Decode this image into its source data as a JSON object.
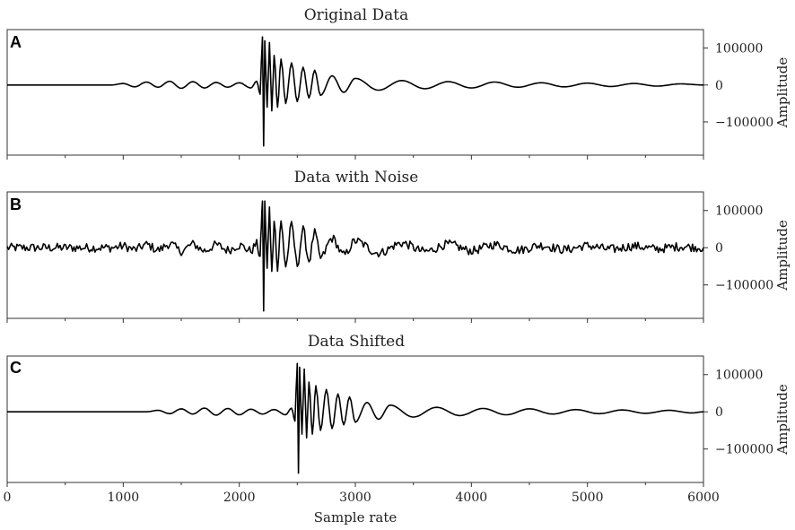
{
  "chart_data": [
    {
      "type": "line",
      "panel_letter": "A",
      "title": "Original Data",
      "ylabel": "Amplitude",
      "yticks": [
        100000,
        0,
        -100000
      ],
      "ytick_labels": [
        "100000",
        "0",
        "−100000"
      ],
      "ylim": [
        -190000,
        150000
      ],
      "xlim": [
        0,
        6000
      ],
      "x_tick_labels_visible": false,
      "series": [
        {
          "x": [
            0,
            900,
            1000,
            1100,
            1200,
            1300,
            1400,
            1500,
            1600,
            1700,
            1800,
            1900,
            2000,
            2100,
            2150,
            2180,
            2190,
            2200,
            2210,
            2220,
            2240,
            2260,
            2280,
            2300,
            2330,
            2360,
            2400,
            2450,
            2500,
            2550,
            2600,
            2650,
            2700,
            2800,
            2900,
            3000,
            3200,
            3400,
            3600,
            3800,
            4000,
            4200,
            4400,
            4600,
            4800,
            5000,
            5200,
            5400,
            5600,
            5800,
            6000
          ],
          "y": [
            0,
            0,
            4000,
            -5000,
            8000,
            -6000,
            10000,
            -9000,
            9000,
            -8000,
            7000,
            -6000,
            6000,
            -8000,
            10000,
            -25000,
            60000,
            130000,
            -165000,
            120000,
            -60000,
            115000,
            -70000,
            80000,
            -60000,
            70000,
            -50000,
            60000,
            -45000,
            48000,
            -35000,
            40000,
            -28000,
            25000,
            -20000,
            18000,
            -14000,
            12000,
            -10000,
            9000,
            -8000,
            8000,
            -6000,
            6000,
            -5000,
            5000,
            -4000,
            4000,
            -3000,
            3000,
            0
          ]
        }
      ]
    },
    {
      "type": "line",
      "panel_letter": "B",
      "title": "Data with Noise",
      "ylabel": "Amplitude",
      "yticks": [
        100000,
        0,
        -100000
      ],
      "ytick_labels": [
        "100000",
        "0",
        "−100000"
      ],
      "ylim": [
        -190000,
        150000
      ],
      "xlim": [
        0,
        6000
      ],
      "x_tick_labels_visible": false,
      "noise_level": 12000,
      "series": [
        {
          "x": [
            0,
            900,
            1000,
            1100,
            1200,
            1300,
            1400,
            1500,
            1600,
            1700,
            1800,
            1900,
            2000,
            2100,
            2150,
            2180,
            2190,
            2200,
            2210,
            2220,
            2240,
            2260,
            2280,
            2300,
            2330,
            2360,
            2400,
            2450,
            2500,
            2550,
            2600,
            2650,
            2700,
            2800,
            2900,
            3000,
            3200,
            3400,
            3600,
            3800,
            4000,
            4200,
            4400,
            4600,
            4800,
            5000,
            5200,
            5400,
            5600,
            5800,
            6000
          ],
          "y": [
            0,
            0,
            4000,
            -5000,
            8000,
            -6000,
            10000,
            -9000,
            9000,
            -8000,
            7000,
            -6000,
            6000,
            -8000,
            10000,
            -25000,
            60000,
            130000,
            -165000,
            120000,
            -60000,
            115000,
            -70000,
            80000,
            -60000,
            70000,
            -50000,
            60000,
            -45000,
            48000,
            -35000,
            40000,
            -28000,
            25000,
            -20000,
            18000,
            -14000,
            12000,
            -10000,
            9000,
            -8000,
            8000,
            -6000,
            6000,
            -5000,
            5000,
            -4000,
            4000,
            -3000,
            3000,
            0
          ]
        }
      ]
    },
    {
      "type": "line",
      "panel_letter": "C",
      "title": "Data Shifted",
      "ylabel": "Amplitude",
      "yticks": [
        100000,
        0,
        -100000
      ],
      "ytick_labels": [
        "100000",
        "0",
        "−100000"
      ],
      "ylim": [
        -190000,
        150000
      ],
      "xlim": [
        0,
        6000
      ],
      "x_tick_labels_visible": true,
      "xticks": [
        0,
        1000,
        2000,
        3000,
        4000,
        5000,
        6000
      ],
      "xtick_labels": [
        "0",
        "1000",
        "2000",
        "3000",
        "4000",
        "5000",
        "6000"
      ],
      "xlabel": "Sample rate",
      "series": [
        {
          "x": [
            0,
            1200,
            1300,
            1400,
            1500,
            1600,
            1700,
            1800,
            1900,
            2000,
            2100,
            2200,
            2300,
            2400,
            2450,
            2480,
            2490,
            2500,
            2510,
            2520,
            2540,
            2560,
            2580,
            2600,
            2630,
            2660,
            2700,
            2750,
            2800,
            2850,
            2900,
            2950,
            3000,
            3100,
            3200,
            3300,
            3500,
            3700,
            3900,
            4100,
            4300,
            4500,
            4700,
            4900,
            5100,
            5300,
            5500,
            5700,
            5900,
            6000
          ],
          "y": [
            0,
            0,
            4000,
            -5000,
            8000,
            -6000,
            10000,
            -9000,
            9000,
            -8000,
            7000,
            -6000,
            6000,
            -8000,
            10000,
            -25000,
            60000,
            130000,
            -165000,
            120000,
            -60000,
            115000,
            -70000,
            80000,
            -60000,
            70000,
            -50000,
            60000,
            -45000,
            48000,
            -35000,
            40000,
            -28000,
            25000,
            -20000,
            18000,
            -14000,
            12000,
            -10000,
            9000,
            -8000,
            8000,
            -6000,
            6000,
            -5000,
            5000,
            -4000,
            4000,
            -3000,
            0
          ]
        }
      ]
    }
  ]
}
